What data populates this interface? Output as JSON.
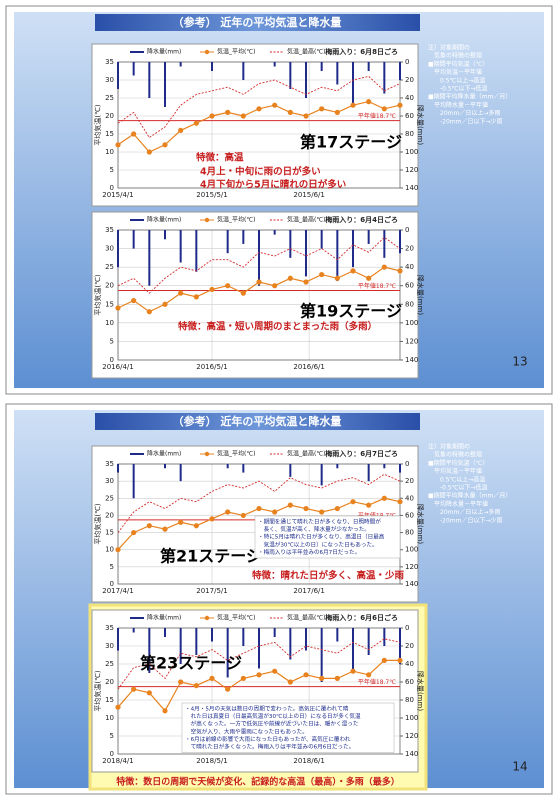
{
  "slides": [
    {
      "title": "（参考） 近年の平均気温と降水量",
      "page": "13",
      "notes": [
        "注）対象期間の",
        "　気象の特徴の整理",
        "■期間平均気温（℃）",
        "　平均気温－平年値",
        "　　0.5℃以上→高温",
        "　　-0.5℃以下→低温",
        "■期間平均降水量（mm／月）",
        "　平均降水量－平年値",
        "　　20mm／日以上→多雨",
        "　　-20mm／日以下→少雨"
      ]
    },
    {
      "title": "（参考） 近年の平均気温と降水量",
      "page": "14",
      "notes": [
        "注）対象期間の",
        "　気象の特徴の整理",
        "■期間平均気温（℃）",
        "　平均気温－平年値",
        "　　0.5℃以上→高温",
        "　　-0.5℃以下→低温",
        "■期間平均降水量（mm／月）",
        "　平均降水量－平年値",
        "　　20mm／日以上→多雨",
        "　　-20mm／日以下→少雨"
      ]
    }
  ],
  "chart_data": [
    {
      "type": "combo",
      "stage": "第17ステージ",
      "rainy_season": "梅雨入り：6月8日ごろ",
      "features": [
        "特徴：高温",
        "4月上・中旬に雨の日が多い",
        "4月下旬から5月に晴れの日が多い"
      ],
      "y_label": "平均気温(℃)",
      "y2_label": "降水量(mm)",
      "normal": {
        "value": 18.7,
        "label": "平年値18.7℃"
      },
      "x": [
        "2015/4/1",
        "2015/4/6",
        "2015/4/11",
        "2015/4/16",
        "2015/4/21",
        "2015/4/26",
        "2015/5/1",
        "2015/5/6",
        "2015/5/11",
        "2015/5/16",
        "2015/5/21",
        "2015/5/26",
        "2015/5/31",
        "2015/6/5",
        "2015/6/10",
        "2015/6/15",
        "2015/6/20",
        "2015/6/25",
        "2015/6/30"
      ],
      "xlim": [
        "2015/4/1",
        "2015/6/30"
      ],
      "xticks": [
        "2015/4/1",
        "2015/5/1",
        "2015/6/1"
      ],
      "ylim": [
        0,
        35
      ],
      "yticks": [
        0,
        5,
        10,
        15,
        20,
        25,
        30,
        35
      ],
      "y2lim": [
        140,
        0
      ],
      "y2ticks": [
        0,
        20,
        40,
        60,
        80,
        100,
        120,
        140
      ],
      "series": [
        {
          "name": "降水量(mm)",
          "color": "#1f2a8a",
          "axis": "y2",
          "values": [
            30,
            15,
            40,
            50,
            5,
            0,
            10,
            0,
            20,
            0,
            5,
            30,
            40,
            10,
            25,
            50,
            10,
            35,
            20
          ]
        },
        {
          "name": "気温_平均(℃)",
          "color": "#e8821e",
          "values": [
            12,
            15,
            10,
            12,
            16,
            18,
            20,
            21,
            20,
            22,
            23,
            21,
            20,
            22,
            21,
            23,
            24,
            22,
            23
          ]
        },
        {
          "name": "気温_最高(℃)",
          "color": "#d42a2a",
          "values": [
            18,
            21,
            14,
            17,
            23,
            26,
            27,
            28,
            26,
            29,
            30,
            28,
            26,
            28,
            27,
            30,
            31,
            27,
            29
          ]
        }
      ]
    },
    {
      "type": "combo",
      "stage": "第19ステージ",
      "rainy_season": "梅雨入り：6月4日ごろ",
      "features": [
        "特徴：高温・短い周期のまとまった雨（多雨）"
      ],
      "y_label": "平均気温(℃)",
      "y2_label": "降水量(mm)",
      "normal": {
        "value": 18.7,
        "label": "平年値18.7℃"
      },
      "x": [
        "2016/4/1",
        "2016/4/6",
        "2016/4/11",
        "2016/4/16",
        "2016/4/21",
        "2016/4/26",
        "2016/5/1",
        "2016/5/6",
        "2016/5/11",
        "2016/5/16",
        "2016/5/21",
        "2016/5/26",
        "2016/5/31",
        "2016/6/5",
        "2016/6/10",
        "2016/6/15",
        "2016/6/20",
        "2016/6/25",
        "2016/6/30"
      ],
      "xlim": [
        "2016/4/1",
        "2016/6/30"
      ],
      "xticks": [
        "2016/4/1",
        "2016/5/1",
        "2016/6/1"
      ],
      "ylim": [
        0,
        35
      ],
      "yticks": [
        0,
        5,
        10,
        15,
        20,
        25,
        30,
        35
      ],
      "y2lim": [
        140,
        0
      ],
      "y2ticks": [
        0,
        20,
        40,
        60,
        80,
        100,
        120,
        140
      ],
      "series": [
        {
          "name": "降水量(mm)",
          "color": "#1f2a8a",
          "axis": "y2",
          "values": [
            40,
            20,
            60,
            10,
            35,
            45,
            0,
            25,
            15,
            60,
            5,
            30,
            50,
            20,
            55,
            40,
            15,
            30,
            25
          ]
        },
        {
          "name": "気温_平均(℃)",
          "color": "#e8821e",
          "values": [
            14,
            16,
            13,
            15,
            18,
            17,
            19,
            20,
            18,
            21,
            20,
            22,
            21,
            23,
            22,
            24,
            22,
            25,
            24
          ]
        },
        {
          "name": "気温_最高(℃)",
          "color": "#d42a2a",
          "values": [
            20,
            22,
            18,
            22,
            25,
            24,
            27,
            27,
            25,
            29,
            28,
            30,
            28,
            30,
            27,
            31,
            29,
            33,
            30
          ]
        }
      ]
    },
    {
      "type": "combo",
      "stage": "第21ステージ",
      "rainy_season": "梅雨入り：6月7日ごろ",
      "features": [
        "特徴：晴れた日が多く、高温・少雨"
      ],
      "remarks": [
        "・期間を通じて晴れた日が多くなり、日照時間が",
        "　長く、気温が高く、降水量が少なかった。",
        "・特に5月は晴れた日が多くなり、高温日（日最高",
        "　気温が30℃以上の日）になった日もあった。",
        "・梅雨入りは平年並みの6月7日だった。"
      ],
      "y_label": "平均気温(℃)",
      "y2_label": "降水量(mm)",
      "normal": {
        "value": 18.7,
        "label": "平年値18.7℃"
      },
      "x": [
        "2017/4/1",
        "2017/4/6",
        "2017/4/11",
        "2017/4/16",
        "2017/4/21",
        "2017/4/26",
        "2017/5/1",
        "2017/5/6",
        "2017/5/11",
        "2017/5/16",
        "2017/5/21",
        "2017/5/26",
        "2017/5/31",
        "2017/6/5",
        "2017/6/10",
        "2017/6/15",
        "2017/6/20",
        "2017/6/25",
        "2017/6/30"
      ],
      "xlim": [
        "2017/4/1",
        "2017/6/30"
      ],
      "xticks": [
        "2017/4/1",
        "2017/5/1",
        "2017/6/1"
      ],
      "ylim": [
        0,
        35
      ],
      "yticks": [
        0,
        5,
        10,
        15,
        20,
        25,
        30,
        35
      ],
      "y2lim": [
        140,
        0
      ],
      "y2ticks": [
        0,
        20,
        40,
        60,
        80,
        100,
        120,
        140
      ],
      "series": [
        {
          "name": "降水量(mm)",
          "color": "#1f2a8a",
          "axis": "y2",
          "values": [
            10,
            40,
            0,
            5,
            20,
            0,
            0,
            5,
            10,
            0,
            0,
            15,
            0,
            25,
            5,
            0,
            20,
            5,
            10
          ]
        },
        {
          "name": "気温_平均(℃)",
          "color": "#e8821e",
          "values": [
            10,
            15,
            17,
            16,
            18,
            17,
            19,
            21,
            20,
            22,
            21,
            23,
            22,
            21,
            22,
            24,
            23,
            25,
            24
          ]
        },
        {
          "name": "気温_最高(℃)",
          "color": "#d42a2a",
          "values": [
            15,
            21,
            24,
            22,
            25,
            24,
            27,
            29,
            28,
            30,
            27,
            31,
            29,
            28,
            30,
            31,
            29,
            32,
            30
          ]
        }
      ]
    },
    {
      "type": "combo",
      "stage": "第23ステージ",
      "rainy_season": "梅雨入り：6月6日ごろ",
      "features": [
        "特徴：数日の周期で天候が変化、記録的な高温（最高）・多雨（最多）"
      ],
      "remarks": [
        "・4月・5月の天気は数日の周期で変わった。高気圧に覆われて晴",
        "　れた日は真夏日（日最高気温が30℃以上の日）になる日が多く気温",
        "　が高くなった。一方で低気圧や前線が近づいた日は、暖かく湿った",
        "　空気が入り、大雨や雷雨になった日もあった。",
        "・6月は前線の影響で大雨になった日もあったが、高気圧に覆われ",
        "　て晴れた日が多くなった。梅雨入りは平年並みの6月6日だった。"
      ],
      "y_label": "平均気温(℃)",
      "y2_label": "降水量(mm)",
      "normal": {
        "value": 18.7,
        "label": "平年値18.7℃"
      },
      "x": [
        "2018/4/1",
        "2018/4/6",
        "2018/4/11",
        "2018/4/16",
        "2018/4/21",
        "2018/4/26",
        "2018/5/1",
        "2018/5/6",
        "2018/5/11",
        "2018/5/16",
        "2018/5/21",
        "2018/5/26",
        "2018/5/31",
        "2018/6/5",
        "2018/6/10",
        "2018/6/15",
        "2018/6/20",
        "2018/6/25",
        "2018/6/30"
      ],
      "xlim": [
        "2018/4/1",
        "2018/6/30"
      ],
      "xticks": [
        "2018/4/1",
        "2018/5/1",
        "2018/6/1"
      ],
      "ylim": [
        0,
        35
      ],
      "yticks": [
        0,
        5,
        10,
        15,
        20,
        25,
        30,
        35
      ],
      "y2lim": [
        140,
        0
      ],
      "y2ticks": [
        0,
        20,
        40,
        60,
        80,
        100,
        120,
        140
      ],
      "series": [
        {
          "name": "降水量(mm)",
          "color": "#1f2a8a",
          "axis": "y2",
          "values": [
            25,
            5,
            50,
            10,
            40,
            30,
            15,
            55,
            20,
            45,
            10,
            35,
            25,
            60,
            15,
            50,
            30,
            20,
            40
          ]
        },
        {
          "name": "気温_平均(℃)",
          "color": "#e8821e",
          "values": [
            13,
            18,
            17,
            12,
            20,
            19,
            21,
            18,
            21,
            22,
            23,
            20,
            22,
            21,
            21,
            23,
            22,
            26,
            26
          ]
        },
        {
          "name": "気温_最高(℃)",
          "color": "#d42a2a",
          "values": [
            18,
            24,
            25,
            21,
            28,
            27,
            29,
            26,
            28,
            30,
            31,
            27,
            30,
            29,
            28,
            31,
            29,
            32,
            31
          ]
        }
      ]
    }
  ]
}
